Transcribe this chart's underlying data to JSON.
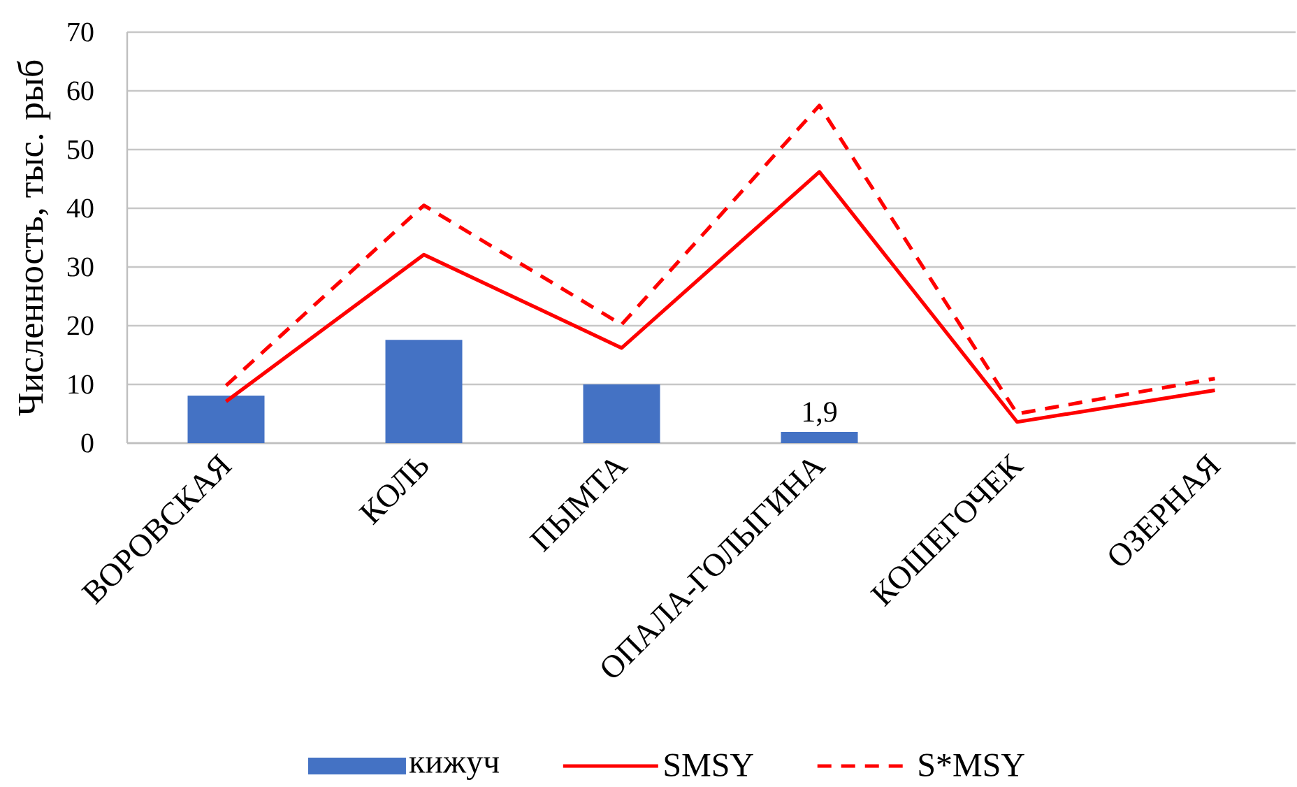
{
  "chart_data": {
    "type": "bar",
    "ylabel": "Численность, тыс. рыб",
    "categories": [
      "ВОРОВСКАЯ",
      "КОЛЬ",
      "ПЫМТА",
      "ОПАЛА-ГОЛЫГИНА",
      "КОШЕГОЧЕК",
      "ОЗЕРНАЯ"
    ],
    "ylim": [
      0,
      70
    ],
    "yticks": [
      0,
      10,
      20,
      30,
      40,
      50,
      60,
      70
    ],
    "grid": "y",
    "legend": "bottom",
    "series": [
      {
        "name": "кижуч",
        "color": "#4472c4",
        "values": [
          8.1,
          17.6,
          10.0,
          1.9,
          null,
          null
        ],
        "value_labels": [
          null,
          null,
          null,
          "1,9",
          null,
          null
        ]
      },
      {
        "name": "SMSY",
        "type": "line",
        "color": "#ff0000",
        "line_style": "solid",
        "values": [
          7.1,
          32.1,
          16.2,
          46.2,
          3.6,
          9.0
        ]
      },
      {
        "name": "S*MSY",
        "type": "line",
        "color": "#ff0000",
        "line_style": "dashed",
        "values": [
          9.8,
          40.5,
          20.2,
          57.5,
          5.0,
          11.0
        ]
      }
    ]
  }
}
